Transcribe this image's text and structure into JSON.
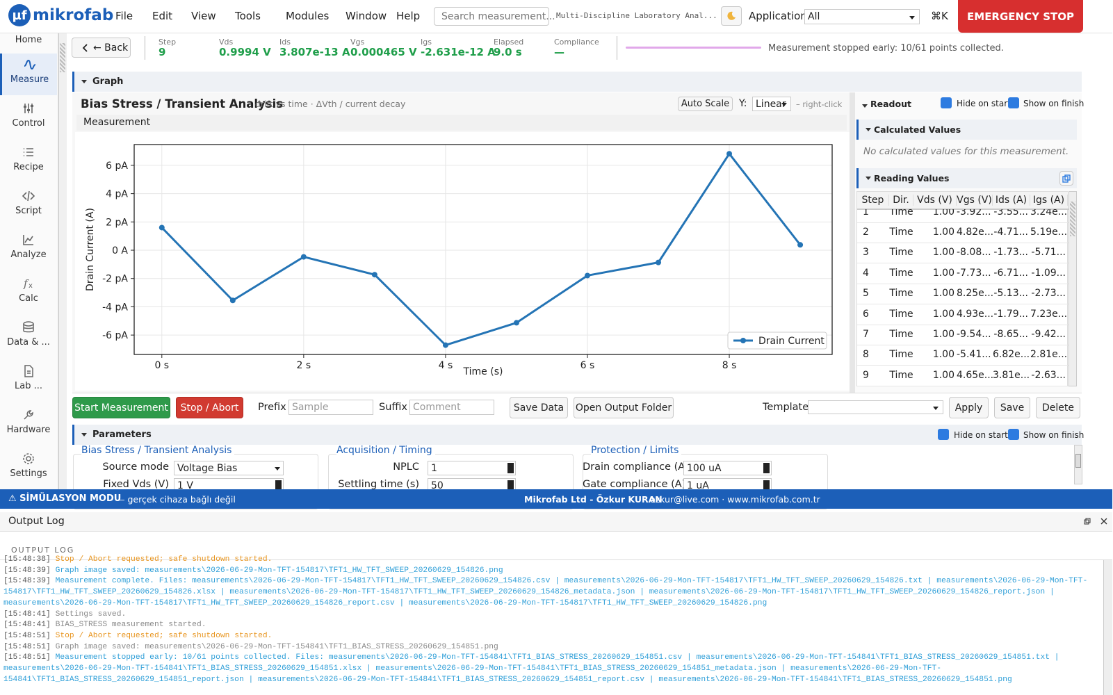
{
  "menu_bar": {
    "logo_mark": "µf",
    "logo": "mikrofab",
    "menus": [
      "File",
      "Edit",
      "View",
      "Tools",
      "Modules",
      "Window",
      "Help"
    ],
    "search_placeholder": "Search measurement...",
    "app_title": "Multi-Discipline Laboratory Anal...",
    "application_label": "Application:",
    "application_value": "All",
    "shortcut": "⌘K",
    "emergency_stop": "EMERGENCY STOP"
  },
  "sidebar": {
    "items": [
      "Home",
      "Measure",
      "Control",
      "Recipe",
      "Script",
      "Analyze",
      "Calc",
      "Data & ...",
      "Lab ...",
      "Hardware",
      "Settings"
    ]
  },
  "status": {
    "back": "← Back",
    "readings": [
      {
        "label": "Step",
        "value": "9"
      },
      {
        "label": "Vds",
        "value": "0.9994 V"
      },
      {
        "label": "Ids",
        "value": "3.807e-13 A"
      },
      {
        "label": "Vgs",
        "value": "0.000465 V"
      },
      {
        "label": "Igs",
        "value": "-2.631e-12 A"
      },
      {
        "label": "Elapsed",
        "value": "9.0 s"
      },
      {
        "label": "Compliance",
        "value": "—"
      }
    ],
    "message": "Measurement stopped early: 10/61 points collected."
  },
  "graph_section": {
    "title": "Graph"
  },
  "chart_toolbar": {
    "auto_scale": "Auto Scale",
    "y_scale_label": "Y:",
    "y_scale": "Linear",
    "hint": "– right-click",
    "panel_label": "Measurement"
  },
  "chart_data": {
    "type": "line",
    "title": "Bias Stress / Transient Analysis",
    "subtitle": "drift vs time · ΔVth / current decay",
    "xlabel": "Time (s)",
    "ylabel": "Drain Current (A)",
    "x": [
      0,
      1,
      2,
      3,
      4,
      5,
      6,
      7,
      8,
      9
    ],
    "series": [
      {
        "name": "Drain Current",
        "color": "#2474b5",
        "values": [
          1.6e-12,
          -3.55e-12,
          -4.71e-13,
          -1.73e-12,
          -6.71e-12,
          -5.13e-12,
          -1.79e-12,
          -8.65e-13,
          6.82e-12,
          3.807e-13
        ]
      }
    ],
    "xlim": [
      -0.39,
      9.45
    ],
    "ylim": [
      -7.37e-12,
      7.47e-12
    ],
    "xticks": [
      {
        "value": 0,
        "label": "0 s"
      },
      {
        "value": 2,
        "label": "2 s"
      },
      {
        "value": 4,
        "label": "4 s"
      },
      {
        "value": 6,
        "label": "6 s"
      },
      {
        "value": 8,
        "label": "8 s"
      }
    ],
    "yticks": [
      {
        "value": -6e-12,
        "label": "-6 pA"
      },
      {
        "value": -4e-12,
        "label": "-4 pA"
      },
      {
        "value": -2e-12,
        "label": "-2 pA"
      },
      {
        "value": 0,
        "label": "0 A"
      },
      {
        "value": 2e-12,
        "label": "2 pA"
      },
      {
        "value": 4e-12,
        "label": "4 pA"
      },
      {
        "value": 6e-12,
        "label": "6 pA"
      }
    ],
    "grid": true,
    "legend": "lower right"
  },
  "readout": {
    "title": "Readout",
    "hide_on_start": "Hide on start",
    "show_on_finish": "Show on finish",
    "calculated_title": "Calculated Values",
    "calculated_empty": "No calculated values for this measurement.",
    "reading_title": "Reading Values",
    "columns": [
      "Step",
      "Dir.",
      "Vds (V)",
      "Vgs (V)",
      "Ids (A)",
      "Igs (A)"
    ],
    "rows": [
      [
        "1",
        "Time",
        "1.00",
        "-3.92...",
        "-3.55...",
        "3.24e..."
      ],
      [
        "2",
        "Time",
        "1.00",
        "4.82e...",
        "-4.71...",
        "5.19e..."
      ],
      [
        "3",
        "Time",
        "1.00",
        "-8.08...",
        "-1.73...",
        "-5.71..."
      ],
      [
        "4",
        "Time",
        "1.00",
        "-7.73...",
        "-6.71...",
        "-1.09..."
      ],
      [
        "5",
        "Time",
        "1.00",
        "8.25e...",
        "-5.13...",
        "-2.73..."
      ],
      [
        "6",
        "Time",
        "1.00",
        "4.93e...",
        "-1.79...",
        "7.23e..."
      ],
      [
        "7",
        "Time",
        "1.00",
        "-9.54...",
        "-8.65...",
        "-9.42..."
      ],
      [
        "8",
        "Time",
        "1.00",
        "-5.41...",
        "6.82e...",
        "2.81e..."
      ],
      [
        "9",
        "Time",
        "1.00",
        "4.65e...",
        "3.81e...",
        "-2.63..."
      ]
    ]
  },
  "actions": {
    "start": "Start Measurement",
    "stop": "Stop / Abort",
    "prefix_label": "Prefix",
    "prefix_placeholder": "Sample",
    "suffix_label": "Suffix",
    "suffix_placeholder": "Comment",
    "save_data": "Save Data",
    "open_folder": "Open Output Folder",
    "template_label": "Template:",
    "apply": "Apply",
    "save": "Save",
    "delete": "Delete"
  },
  "parameters": {
    "title": "Parameters",
    "hide_on_start": "Hide on start",
    "show_on_finish": "Show on finish",
    "groups": [
      {
        "title": "Bias Stress / Transient Analysis",
        "fields": [
          {
            "label": "Source mode",
            "value": "Voltage Bias"
          },
          {
            "label": "Fixed Vds (V)",
            "value": "1 V"
          }
        ]
      },
      {
        "title": "Acquisition / Timing",
        "fields": [
          {
            "label": "NPLC",
            "value": "1"
          },
          {
            "label": "Settling time (s)",
            "value": "50"
          }
        ]
      },
      {
        "title": "Protection / Limits",
        "fields": [
          {
            "label": "Drain compliance (A)",
            "value": "100 uA"
          },
          {
            "label": "Gate compliance (A)",
            "value": "1 uA"
          }
        ]
      }
    ]
  },
  "footer": {
    "mode": "⚠ SİMÜLASYON MODU",
    "mode_note": "— gerçek cihaza bağlı değil",
    "company": "Mikrofab Ltd - Özkur KURAN",
    "contact": "· ozkur@live.com · www.mikrofab.com.tr"
  },
  "log": {
    "title": "Output Log",
    "header": "OUTPUT LOG",
    "lines": [
      {
        "time": "[15:48:38]",
        "text": "Stop / Abort requested; safe shutdown started.",
        "color": "#e8951f"
      },
      {
        "time": "[15:48:39]",
        "text": "Graph image saved: measurements\\2026-06-29-Mon-TFT-154817\\TFT1_HW_TFT_SWEEP_20260629_154826.png",
        "color": "#2f9fd8"
      },
      {
        "time": "[15:48:39]",
        "text": "Measurement complete. Files: measurements\\2026-06-29-Mon-TFT-154817\\TFT1_HW_TFT_SWEEP_20260629_154826.csv | measurements\\2026-06-29-Mon-TFT-154817\\TFT1_HW_TFT_SWEEP_20260629_154826.txt | measurements\\2026-06-29-Mon-TFT-154817\\TFT1_HW_TFT_SWEEP_20260629_154826.xlsx | measurements\\2026-06-29-Mon-TFT-154817\\TFT1_HW_TFT_SWEEP_20260629_154826_metadata.json | measurements\\2026-06-29-Mon-TFT-154817\\TFT1_HW_TFT_SWEEP_20260629_154826_report.json | measurements\\2026-06-29-Mon-TFT-154817\\TFT1_HW_TFT_SWEEP_20260629_154826_report.csv | measurements\\2026-06-29-Mon-TFT-154817\\TFT1_HW_TFT_SWEEP_20260629_154826.png",
        "color": "#2f9fd8"
      },
      {
        "time": "[15:48:41]",
        "text": "Settings saved.",
        "color": "#8a8a8a"
      },
      {
        "time": "[15:48:41]",
        "text": "BIAS_STRESS measurement started.",
        "color": "#8a8a8a"
      },
      {
        "time": "[15:48:51]",
        "text": "Stop / Abort requested; safe shutdown started.",
        "color": "#e8951f"
      },
      {
        "time": "[15:48:51]",
        "text": "Graph image saved: measurements\\2026-06-29-Mon-TFT-154841\\TFT1_BIAS_STRESS_20260629_154851.png",
        "color": "#8a8a8a"
      },
      {
        "time": "[15:48:51]",
        "text": "Measurement stopped early: 10/61 points collected. Files: measurements\\2026-06-29-Mon-TFT-154841\\TFT1_BIAS_STRESS_20260629_154851.csv | measurements\\2026-06-29-Mon-TFT-154841\\TFT1_BIAS_STRESS_20260629_154851.txt | measurements\\2026-06-29-Mon-TFT-154841\\TFT1_BIAS_STRESS_20260629_154851.xlsx | measurements\\2026-06-29-Mon-TFT-154841\\TFT1_BIAS_STRESS_20260629_154851_metadata.json | measurements\\2026-06-29-Mon-TFT-154841\\TFT1_BIAS_STRESS_20260629_154851_report.json | measurements\\2026-06-29-Mon-TFT-154841\\TFT1_BIAS_STRESS_20260629_154851_report.csv | measurements\\2026-06-29-Mon-TFT-154841\\TFT1_BIAS_STRESS_20260629_154851.png",
        "color": "#2f9fd8"
      }
    ]
  }
}
